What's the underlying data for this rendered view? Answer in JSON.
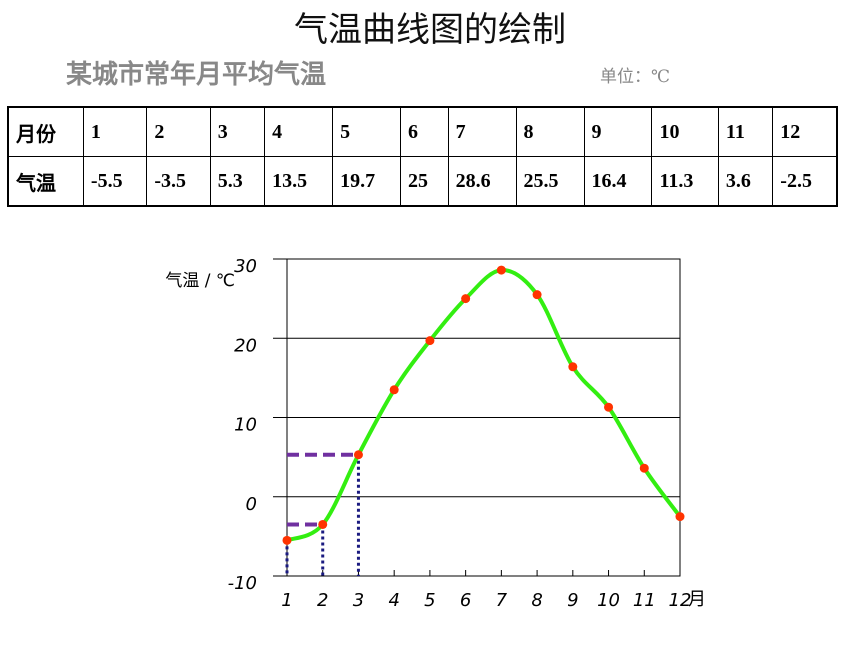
{
  "title": "气温曲线图的绘制",
  "subtitle": "某城市常年月平均气温",
  "unit": "单位：℃",
  "table": {
    "row_headers": [
      "月份",
      "气温"
    ]
  },
  "chart_data": {
    "type": "line",
    "y_label": "气温 / ℃",
    "x_label": "月",
    "x": [
      1,
      2,
      3,
      4,
      5,
      6,
      7,
      8,
      9,
      10,
      11,
      12
    ],
    "values": [
      -5.5,
      -3.5,
      5.3,
      13.5,
      19.7,
      25,
      28.6,
      25.5,
      16.4,
      11.3,
      3.6,
      -2.5
    ],
    "xlim": [
      1,
      12
    ],
    "ylim": [
      -10,
      30
    ],
    "yticks": [
      -10,
      0,
      10,
      20,
      30
    ],
    "line_color": "#33ee11",
    "marker_color": "#ff3300",
    "grid": true
  }
}
